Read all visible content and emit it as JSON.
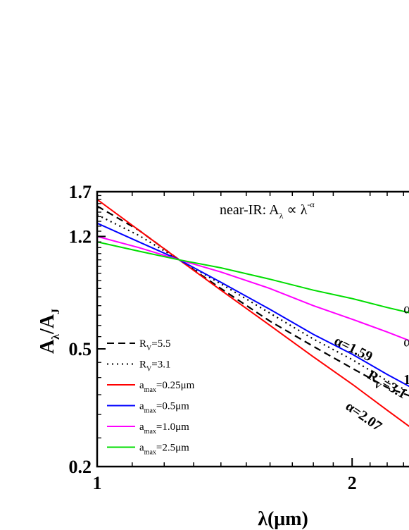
{
  "chart_data": {
    "type": "line",
    "title": "",
    "annotation_title": "near-IR: A",
    "annotation_title_sub": "λ",
    "annotation_title_rest": " ∝ λ",
    "annotation_title_sup": "-α",
    "xlabel": "λ(μm)",
    "ylabel_main": "A",
    "ylabel_sub1": "λ",
    "ylabel_mid": "/A",
    "ylabel_sub2": "J",
    "x_scale": "log",
    "y_scale": "log",
    "xlim": [
      1.0,
      2.35
    ],
    "ylim": [
      0.2,
      1.7
    ],
    "x_ticks": [
      {
        "value": 1,
        "label": "1"
      },
      {
        "value": 2,
        "label": "2"
      }
    ],
    "y_ticks": [
      {
        "value": 0.2,
        "label": "0.2"
      },
      {
        "value": 0.5,
        "label": "0.5"
      },
      {
        "value": 1.2,
        "label": "1.2"
      },
      {
        "value": 1.7,
        "label": "1.7"
      }
    ],
    "legend_position": "lower-left",
    "series": [
      {
        "name": "R",
        "name_sub": "V",
        "name_rest": "=5.5",
        "color": "#000000",
        "dash": "dashed",
        "x": [
          1.0,
          1.12,
          1.25,
          1.4,
          1.6,
          1.8,
          2.0,
          2.2,
          2.35
        ],
        "y": [
          1.52,
          1.26,
          1.0,
          0.8,
          0.62,
          0.51,
          0.43,
          0.37,
          0.345
        ]
      },
      {
        "name": "R",
        "name_sub": "V",
        "name_rest": "=3.1",
        "color": "#000000",
        "dash": "dotted",
        "x": [
          1.0,
          1.12,
          1.25,
          1.4,
          1.6,
          1.8,
          2.0,
          2.2,
          2.35
        ],
        "y": [
          1.42,
          1.21,
          1.0,
          0.83,
          0.66,
          0.54,
          0.46,
          0.39,
          0.355
        ]
      },
      {
        "name": "a",
        "name_sub": "max",
        "name_rest": "=0.25μm",
        "color": "#ff0000",
        "dash": "solid",
        "x": [
          1.0,
          1.12,
          1.25,
          1.4,
          1.6,
          1.8,
          2.0,
          2.2,
          2.35
        ],
        "y": [
          1.6,
          1.26,
          1.0,
          0.79,
          0.6,
          0.47,
          0.38,
          0.31,
          0.27
        ]
      },
      {
        "name": "a",
        "name_sub": "max",
        "name_rest": "=0.5μm",
        "color": "#0000ff",
        "dash": "solid",
        "x": [
          1.0,
          1.12,
          1.25,
          1.4,
          1.6,
          1.8,
          2.0,
          2.2,
          2.35
        ],
        "y": [
          1.33,
          1.15,
          1.0,
          0.84,
          0.68,
          0.56,
          0.48,
          0.41,
          0.37
        ]
      },
      {
        "name": "a",
        "name_sub": "max",
        "name_rest": "=1.0μm",
        "color": "#ff00ff",
        "dash": "solid",
        "x": [
          1.0,
          1.12,
          1.25,
          1.4,
          1.6,
          1.8,
          2.0,
          2.2,
          2.35
        ],
        "y": [
          1.2,
          1.1,
          1.0,
          0.91,
          0.8,
          0.7,
          0.63,
          0.57,
          0.53
        ]
      },
      {
        "name": "a",
        "name_sub": "max",
        "name_rest": "=2.5μm",
        "color": "#00dd00",
        "dash": "solid",
        "x": [
          1.0,
          1.12,
          1.25,
          1.4,
          1.6,
          1.8,
          2.0,
          2.2,
          2.35
        ],
        "y": [
          1.15,
          1.07,
          1.0,
          0.94,
          0.86,
          0.79,
          0.74,
          0.69,
          0.66
        ]
      }
    ],
    "annotations": [
      {
        "text": "α=1.59",
        "x": 1.9,
        "y": 0.52,
        "angle": 26,
        "weight": "bold"
      },
      {
        "text": "R",
        "sub": "V",
        "rest": "=3.1",
        "x": 2.08,
        "y": 0.4,
        "angle": 30,
        "weight": "bold"
      },
      {
        "text": "α=2.07",
        "x": 1.96,
        "y": 0.315,
        "angle": 35,
        "weight": "bold"
      },
      {
        "text": "α",
        "x": 2.3,
        "y": 0.66,
        "angle": 0,
        "weight": "normal"
      },
      {
        "text": "α",
        "x": 2.3,
        "y": 0.51,
        "angle": 0,
        "weight": "normal"
      },
      {
        "text": "1",
        "x": 2.3,
        "y": 0.38,
        "angle": 0,
        "weight": "bold"
      }
    ]
  }
}
